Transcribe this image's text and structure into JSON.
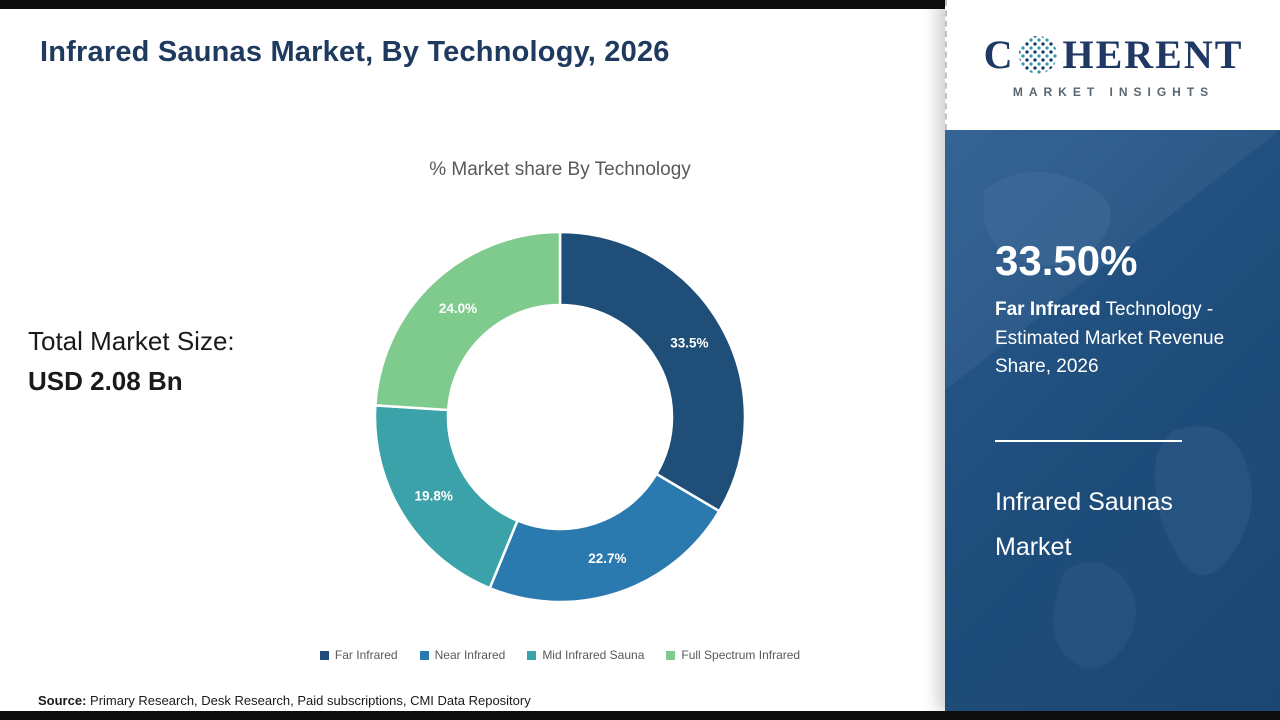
{
  "page": {
    "title": "Infrared Saunas Market, By Technology, 2026",
    "source_label": "Source:",
    "source_text": " Primary Research, Desk Research, Paid subscriptions, CMI Data Repository"
  },
  "logo": {
    "brand_prefix": "C",
    "brand_suffix": "HERENT",
    "brand_subtitle": "MARKET INSIGHTS",
    "globe_icon": "dotted-globe",
    "brand_color": "#1f3864"
  },
  "left_stat": {
    "label": "Total Market Size:",
    "value": "USD 2.08 Bn"
  },
  "chart_data": {
    "type": "pie",
    "donut": true,
    "title": "% Market share By Technology",
    "categories": [
      "Far Infrared",
      "Near Infrared",
      "Mid Infrared Sauna",
      "Full Spectrum Infrared"
    ],
    "values": [
      33.5,
      22.7,
      19.8,
      24.0
    ],
    "labels": [
      "33.5%",
      "22.7%",
      "19.8%",
      "24.0%"
    ],
    "colors": [
      "#1f4e79",
      "#2a7ab0",
      "#3ba2aa",
      "#7fca8d"
    ],
    "legend_position": "bottom",
    "start_angle_deg": 0,
    "direction": "clockwise"
  },
  "right_panel": {
    "highlight_value": "33.50%",
    "highlight_bold": "Far Infrared",
    "highlight_rest": " Technology - Estimated Market Revenue Share, 2026",
    "market_name_line1": "Infrared Saunas",
    "market_name_line2": "Market",
    "panel_color": "#1f4e7c"
  }
}
